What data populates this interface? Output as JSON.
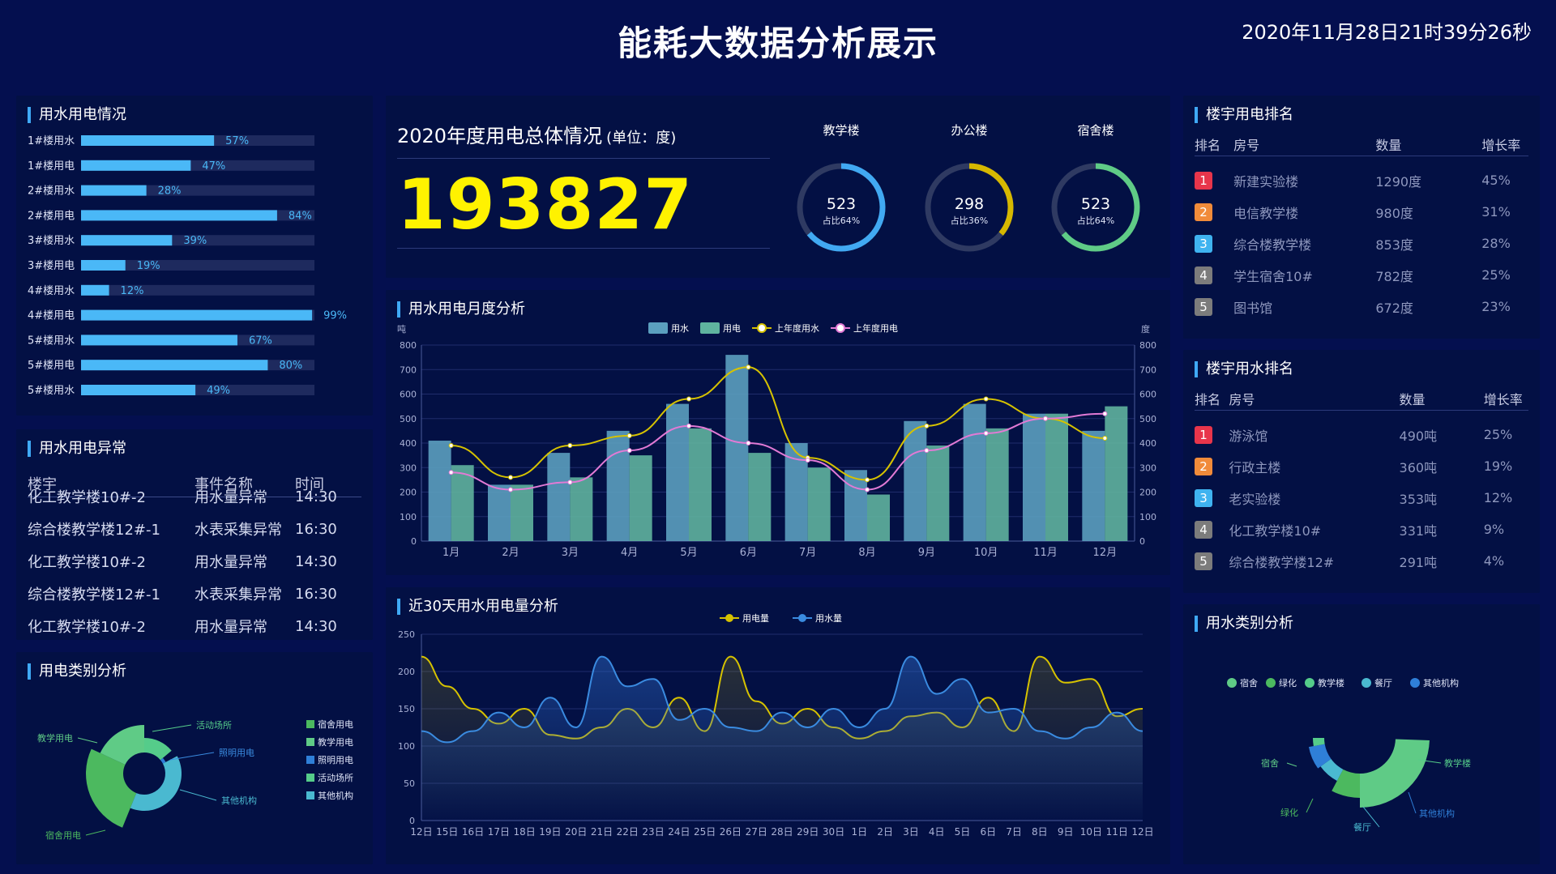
{
  "header": {
    "title": "能耗大数据分析展示",
    "clock": "2020年11月28日21时39分26秒"
  },
  "usage_panel": {
    "title": "用水用电情况",
    "items": [
      {
        "label": "1#楼用水",
        "pct": "57%",
        "value": 57
      },
      {
        "label": "1#楼用电",
        "pct": "47%",
        "value": 47
      },
      {
        "label": "2#楼用水",
        "pct": "28%",
        "value": 28
      },
      {
        "label": "2#楼用电",
        "pct": "84%",
        "value": 84
      },
      {
        "label": "3#楼用水",
        "pct": "39%",
        "value": 39
      },
      {
        "label": "3#楼用电",
        "pct": "19%",
        "value": 19
      },
      {
        "label": "4#楼用水",
        "pct": "12%",
        "value": 12
      },
      {
        "label": "4#楼用电",
        "pct": "99%",
        "value": 99
      },
      {
        "label": "5#楼用水",
        "pct": "67%",
        "value": 67
      },
      {
        "label": "5#楼用电",
        "pct": "80%",
        "value": 80
      },
      {
        "label": "5#楼用水",
        "pct": "49%",
        "value": 49
      }
    ],
    "colors": {
      "bar": "#4ab8f7",
      "track": "#1e2a5e",
      "text": "#4ab8f7"
    }
  },
  "anomaly_panel": {
    "title": "用水用电异常",
    "columns": [
      "楼宇",
      "事件名称",
      "时间"
    ],
    "rows": [
      [
        "化工教学楼10#-2",
        "用水量异常",
        "14:30"
      ],
      [
        "综合楼教学楼12#-1",
        "水表采集异常",
        "16:30"
      ],
      [
        "化工教学楼10#-2",
        "用水量异常",
        "14:30"
      ],
      [
        "综合楼教学楼12#-1",
        "水表采集异常",
        "16:30"
      ],
      [
        "化工教学楼10#-2",
        "用水量异常",
        "14:30"
      ]
    ]
  },
  "elec_category": {
    "title": "用电类别分析",
    "legend": [
      "宿舍用电",
      "教学用电",
      "照明用电",
      "活动场所",
      "其他机构"
    ],
    "callouts": [
      "宿舍用电",
      "教学用电",
      "照明用电",
      "活动场所",
      "其他机构"
    ],
    "colors": [
      "#4cb95f",
      "#5fcb86",
      "#2f7fd8",
      "#55cc8a",
      "#4ab9d0"
    ]
  },
  "annual": {
    "title": "2020年度用电总体情况",
    "unit": "(单位：度)",
    "total": "193827",
    "rings": [
      {
        "label": "教学楼",
        "value": "523",
        "sub": "占比64%",
        "frac": 0.64,
        "color": "#41a9f2"
      },
      {
        "label": "办公楼",
        "value": "298",
        "sub": "占比36%",
        "frac": 0.36,
        "color": "#d6b800"
      },
      {
        "label": "宿舍楼",
        "value": "523",
        "sub": "占比64%",
        "frac": 0.64,
        "color": "#5fcb86"
      }
    ]
  },
  "elec_rank": {
    "title": "楼宇用电排名",
    "columns": [
      "排名",
      "房号",
      "数量",
      "增长率"
    ],
    "rows": [
      {
        "rank": "1",
        "name": "新建实验楼",
        "qty": "1290度",
        "rate": "45%"
      },
      {
        "rank": "2",
        "name": "电信教学楼",
        "qty": "980度",
        "rate": "31%"
      },
      {
        "rank": "3",
        "name": "综合楼教学楼",
        "qty": "853度",
        "rate": "28%"
      },
      {
        "rank": "4",
        "name": "学生宿舍10#",
        "qty": "782度",
        "rate": "25%"
      },
      {
        "rank": "5",
        "name": "图书馆",
        "qty": "672度",
        "rate": "23%"
      }
    ],
    "badge_colors": [
      "#e8354b",
      "#f18b3a",
      "#3fb3f0",
      "#7c7c7c",
      "#7c7c7c"
    ]
  },
  "water_rank": {
    "title": "楼宇用水排名",
    "columns": [
      "排名",
      "房号",
      "数量",
      "增长率"
    ],
    "rows": [
      {
        "rank": "1",
        "name": "游泳馆",
        "qty": "490吨",
        "rate": "25%"
      },
      {
        "rank": "2",
        "name": "行政主楼",
        "qty": "360吨",
        "rate": "19%"
      },
      {
        "rank": "3",
        "name": "老实验楼",
        "qty": "353吨",
        "rate": "12%"
      },
      {
        "rank": "4",
        "name": "化工教学楼10#",
        "qty": "331吨",
        "rate": "9%"
      },
      {
        "rank": "5",
        "name": "综合楼教学楼12#",
        "qty": "291吨",
        "rate": "4%"
      }
    ],
    "badge_colors": [
      "#e8354b",
      "#f18b3a",
      "#3fb3f0",
      "#7c7c7c",
      "#7c7c7c"
    ]
  },
  "water_category": {
    "title": "用水类别分析",
    "legend": [
      "宿舍",
      "绿化",
      "教学楼",
      "餐厅",
      "其他机构"
    ],
    "callouts": [
      "宿舍",
      "绿化",
      "餐厅",
      "其他机构",
      "教学楼"
    ],
    "colors": [
      "#5fcb86",
      "#4cb95f",
      "#55cc8a",
      "#4ab9d0",
      "#2f7fd8"
    ]
  },
  "chart_data": [
    {
      "type": "bar",
      "title": "用水用电月度分析",
      "ylabel": "吨",
      "y2label": "度",
      "ylim": [
        0,
        800
      ],
      "yticks": [
        "0",
        "100",
        "200",
        "300",
        "400",
        "500",
        "600",
        "700",
        "800"
      ],
      "categories": [
        "1月",
        "2月",
        "3月",
        "4月",
        "5月",
        "6月",
        "7月",
        "8月",
        "9月",
        "10月",
        "11月",
        "12月"
      ],
      "legend_position": "top-center",
      "series": [
        {
          "name": "用水",
          "kind": "bar",
          "color": "#5b9fbf",
          "values": [
            410,
            230,
            360,
            450,
            560,
            760,
            400,
            290,
            490,
            560,
            520,
            450
          ]
        },
        {
          "name": "用电",
          "kind": "bar",
          "color": "#5fb39f",
          "values": [
            310,
            230,
            260,
            350,
            460,
            360,
            300,
            190,
            390,
            460,
            520,
            550
          ]
        },
        {
          "name": "上年度用水",
          "kind": "line",
          "color": "#d6c200",
          "values": [
            390,
            260,
            390,
            430,
            580,
            710,
            340,
            250,
            470,
            580,
            500,
            420
          ]
        },
        {
          "name": "上年度用电",
          "kind": "line",
          "color": "#e27ad5",
          "values": [
            280,
            210,
            240,
            370,
            470,
            400,
            330,
            210,
            370,
            440,
            500,
            520
          ]
        }
      ]
    },
    {
      "type": "area",
      "title": "近30天用水用电量分析",
      "ylim": [
        0,
        250
      ],
      "yticks": [
        "0",
        "50",
        "100",
        "150",
        "200",
        "250"
      ],
      "x": [
        "12日",
        "15日",
        "16日",
        "17日",
        "18日",
        "19日",
        "20日",
        "21日",
        "22日",
        "23日",
        "24日",
        "25日",
        "26日",
        "27日",
        "28日",
        "29日",
        "30日",
        "1日",
        "2日",
        "3日",
        "4日",
        "5日",
        "6日",
        "7日",
        "8日",
        "9日",
        "10日",
        "11日",
        "12日"
      ],
      "legend_position": "top-center",
      "series": [
        {
          "name": "用电量",
          "color": "#d6c200",
          "values": [
            220,
            180,
            150,
            130,
            150,
            115,
            110,
            125,
            150,
            125,
            165,
            120,
            220,
            160,
            130,
            150,
            125,
            110,
            120,
            140,
            145,
            125,
            165,
            120,
            220,
            185,
            190,
            140,
            150
          ]
        },
        {
          "name": "用水量",
          "color": "#3a8be0",
          "values": [
            120,
            105,
            120,
            145,
            125,
            165,
            125,
            220,
            180,
            190,
            135,
            150,
            125,
            120,
            145,
            125,
            150,
            125,
            150,
            220,
            170,
            190,
            145,
            150,
            120,
            110,
            125,
            145,
            120
          ]
        }
      ]
    }
  ]
}
